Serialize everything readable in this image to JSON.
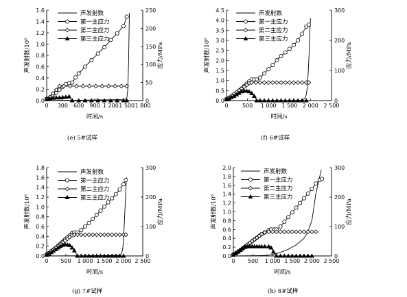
{
  "chart_data": [
    {
      "type": "line",
      "caption": "(e)  5#试样",
      "xlabel": "时间/s",
      "ylabel_left": "声发射数/10⁶",
      "ylabel_right": "应力/MPa",
      "xlim": [
        0,
        1800
      ],
      "ylim_left": [
        0,
        1.6
      ],
      "ylim_right": [
        0,
        250
      ],
      "x_ticks": [
        "0",
        "300",
        "600",
        "900",
        "1 200",
        "1 500",
        "1 800"
      ],
      "x_tick_values": [
        0,
        300,
        600,
        900,
        1200,
        1500,
        1800
      ],
      "y_left_ticks": [
        "0.0",
        "0.2",
        "0.4",
        "0.6",
        "0.8",
        "1.0",
        "1.2",
        "1.4",
        "1.6"
      ],
      "y_left_tick_values": [
        0,
        0.2,
        0.4,
        0.6,
        0.8,
        1.0,
        1.2,
        1.4,
        1.6
      ],
      "y_right_ticks": [
        "0",
        "50",
        "100",
        "150",
        "200",
        "250"
      ],
      "y_right_tick_values": [
        0,
        50,
        100,
        150,
        200,
        250
      ],
      "legend": [
        "声发射数",
        "第一主应力",
        "第二主应力",
        "第三主应力"
      ],
      "series": [
        {
          "name": "声发射数",
          "axis": "left",
          "marker": "none",
          "x": [
            0,
            200,
            400,
            600,
            800,
            1000,
            1200,
            1400,
            1500,
            1520,
            1535,
            1545,
            1550
          ],
          "y": [
            0,
            0.003,
            0.005,
            0.007,
            0.01,
            0.012,
            0.015,
            0.02,
            0.03,
            0.2,
            0.7,
            1.3,
            1.55
          ]
        },
        {
          "name": "第一主应力",
          "axis": "right",
          "marker": "circle",
          "x": [
            0,
            60,
            120,
            180,
            240,
            300,
            360,
            420,
            480,
            540,
            600,
            720,
            840,
            960,
            1080,
            1200,
            1320,
            1440,
            1500
          ],
          "y": [
            5,
            9,
            14,
            22,
            30,
            38,
            46,
            48,
            50,
            64,
            75,
            94,
            112,
            130,
            148,
            168,
            186,
            206,
            232
          ]
        },
        {
          "name": "第二主应力",
          "axis": "right",
          "marker": "diamond",
          "x": [
            0,
            60,
            120,
            180,
            240,
            320,
            440,
            560,
            680,
            800,
            920,
            1040,
            1160,
            1280,
            1400,
            1500
          ],
          "y": [
            5,
            10,
            20,
            30,
            40,
            40,
            40,
            40,
            40,
            40,
            40,
            40,
            40,
            40,
            40,
            40
          ]
        },
        {
          "name": "第三主应力",
          "axis": "right",
          "marker": "triangle",
          "x": [
            0,
            60,
            120,
            180,
            240,
            300,
            360,
            420,
            480,
            600,
            720,
            840,
            960,
            1080,
            1200,
            1320,
            1440,
            1500
          ],
          "y": [
            3,
            5,
            7,
            8,
            8,
            9,
            10,
            11,
            0,
            0,
            0,
            0,
            0,
            0,
            0,
            0,
            0,
            0
          ]
        }
      ]
    },
    {
      "type": "line",
      "caption": "(f)  6#试样",
      "xlabel": "时间/s",
      "ylabel_left": "声发射数/10⁶",
      "ylabel_right": "应力/MPa",
      "xlim": [
        0,
        2500
      ],
      "ylim_left": [
        0,
        4.5
      ],
      "ylim_right": [
        0,
        300
      ],
      "x_ticks": [
        "0",
        "500",
        "1 000",
        "1 500",
        "2 000",
        "2 500"
      ],
      "x_tick_values": [
        0,
        500,
        1000,
        1500,
        2000,
        2500
      ],
      "y_left_ticks": [
        "0.0",
        "0.5",
        "1.0",
        "1.5",
        "2.0",
        "2.5",
        "3.0",
        "3.5",
        "4.0",
        "4.5"
      ],
      "y_left_tick_values": [
        0,
        0.5,
        1.0,
        1.5,
        2.0,
        2.5,
        3.0,
        3.5,
        4.0,
        4.5
      ],
      "y_right_ticks": [
        "0",
        "100",
        "200",
        "300"
      ],
      "y_right_tick_values": [
        0,
        100,
        200,
        300
      ],
      "legend": [
        "声发射数",
        "第一主应力",
        "第二主应力",
        "第三主应力"
      ],
      "series": [
        {
          "name": "声发射数",
          "axis": "left",
          "marker": "none",
          "x": [
            0,
            500,
            1000,
            1500,
            1800,
            1860,
            1900,
            1920,
            1940,
            1960,
            1980,
            2000
          ],
          "y": [
            0,
            0.003,
            0.006,
            0.01,
            0.02,
            0.1,
            0.3,
            0.6,
            1.2,
            2.0,
            3.2,
            4.1
          ]
        },
        {
          "name": "第一主应力",
          "axis": "right",
          "marker": "circle",
          "x": [
            0,
            60,
            120,
            180,
            240,
            300,
            360,
            420,
            480,
            540,
            600,
            660,
            720,
            800,
            900,
            1000,
            1100,
            1200,
            1300,
            1400,
            1500,
            1600,
            1700,
            1800,
            1900,
            1960
          ],
          "y": [
            5,
            9,
            14,
            20,
            26,
            33,
            40,
            48,
            56,
            64,
            70,
            70,
            70,
            76,
            90,
            104,
            118,
            134,
            148,
            160,
            172,
            184,
            200,
            222,
            246,
            252
          ]
        },
        {
          "name": "第二主应力",
          "axis": "right",
          "marker": "diamond",
          "x": [
            0,
            60,
            120,
            180,
            240,
            300,
            360,
            420,
            480,
            540,
            600,
            700,
            800,
            900,
            1000,
            1100,
            1200,
            1300,
            1400,
            1500,
            1600,
            1700,
            1800,
            1900,
            1960
          ],
          "y": [
            5,
            10,
            16,
            22,
            28,
            34,
            40,
            46,
            52,
            58,
            60,
            60,
            60,
            60,
            60,
            60,
            60,
            60,
            60,
            60,
            60,
            60,
            60,
            60,
            60
          ]
        },
        {
          "name": "第三主应力",
          "axis": "right",
          "marker": "triangle",
          "x": [
            0,
            60,
            120,
            180,
            240,
            300,
            360,
            420,
            480,
            540,
            600,
            660,
            720,
            800,
            900,
            1000,
            1100,
            1200,
            1300,
            1400,
            1500,
            1600,
            1700,
            1800,
            1900
          ],
          "y": [
            3,
            7,
            11,
            15,
            20,
            25,
            30,
            32,
            32,
            30,
            24,
            15,
            0,
            0,
            0,
            0,
            0,
            0,
            0,
            0,
            0,
            0,
            0,
            0,
            0
          ]
        }
      ]
    },
    {
      "type": "line",
      "caption": "(g)  7#试样",
      "xlabel": "时间/s",
      "ylabel_left": "声发射数/10⁶",
      "ylabel_right": "应力/MPa",
      "xlim": [
        0,
        2500
      ],
      "ylim_left": [
        0,
        1.8
      ],
      "ylim_right": [
        0,
        300
      ],
      "x_ticks": [
        "0",
        "500",
        "1 000",
        "1 500",
        "2 000",
        "2 500"
      ],
      "x_tick_values": [
        0,
        500,
        1000,
        1500,
        2000,
        2500
      ],
      "y_left_ticks": [
        "0.0",
        "0.2",
        "0.4",
        "0.6",
        "0.8",
        "1.0",
        "1.2",
        "1.4",
        "1.6",
        "1.8"
      ],
      "y_left_tick_values": [
        0,
        0.2,
        0.4,
        0.6,
        0.8,
        1.0,
        1.2,
        1.4,
        1.6,
        1.8
      ],
      "y_right_ticks": [
        "0",
        "100",
        "200",
        "300"
      ],
      "y_right_tick_values": [
        0,
        100,
        200,
        300
      ],
      "legend": [
        "声发射数",
        "第一主应力",
        "第二主应力",
        "第三主应力"
      ],
      "series": [
        {
          "name": "声发射数",
          "axis": "left",
          "marker": "none",
          "x": [
            0,
            500,
            1000,
            1500,
            1900,
            1950,
            1980,
            2000,
            2020,
            2040,
            2060,
            2080
          ],
          "y": [
            0,
            0.003,
            0.005,
            0.008,
            0.015,
            0.05,
            0.15,
            0.35,
            0.65,
            1.0,
            1.35,
            1.6
          ]
        },
        {
          "name": "第一主应力",
          "axis": "right",
          "marker": "circle",
          "x": [
            0,
            60,
            120,
            180,
            240,
            300,
            360,
            420,
            480,
            540,
            600,
            660,
            720,
            800,
            900,
            1000,
            1100,
            1200,
            1300,
            1400,
            1500,
            1600,
            1700,
            1800,
            1900,
            2000,
            2060
          ],
          "y": [
            5,
            10,
            16,
            22,
            28,
            35,
            42,
            49,
            56,
            63,
            70,
            77,
            80,
            80,
            88,
            100,
            112,
            126,
            140,
            154,
            168,
            182,
            196,
            210,
            226,
            244,
            258
          ]
        },
        {
          "name": "第二主应力",
          "axis": "right",
          "marker": "diamond",
          "x": [
            0,
            60,
            120,
            180,
            240,
            300,
            360,
            420,
            480,
            540,
            600,
            660,
            720,
            800,
            900,
            1000,
            1100,
            1200,
            1300,
            1400,
            1500,
            1600,
            1700,
            1800,
            1900,
            2000,
            2060
          ],
          "y": [
            5,
            10,
            16,
            22,
            28,
            34,
            40,
            46,
            52,
            58,
            64,
            70,
            72,
            72,
            72,
            72,
            72,
            72,
            72,
            72,
            72,
            72,
            72,
            72,
            72,
            72,
            72
          ]
        },
        {
          "name": "第三主应力",
          "axis": "right",
          "marker": "triangle",
          "x": [
            0,
            60,
            120,
            180,
            240,
            300,
            360,
            420,
            480,
            540,
            600,
            660,
            720,
            800,
            900,
            1000,
            1100,
            1200,
            1300,
            1400,
            1500,
            1600,
            1700,
            1800,
            1900,
            2000
          ],
          "y": [
            3,
            7,
            12,
            17,
            22,
            28,
            33,
            37,
            38,
            38,
            36,
            28,
            18,
            0,
            0,
            0,
            0,
            0,
            0,
            0,
            0,
            0,
            0,
            0,
            0,
            0
          ]
        }
      ]
    },
    {
      "type": "line",
      "caption": "(h)  8#试样",
      "xlabel": "时间/s",
      "ylabel_left": "声发射数/10⁶",
      "ylabel_right": "应力/MPa",
      "xlim": [
        0,
        2500
      ],
      "ylim_left": [
        0,
        2.0
      ],
      "ylim_right": [
        0,
        300
      ],
      "x_ticks": [
        "0",
        "500",
        "1 000",
        "1 500",
        "2 000",
        "2 500"
      ],
      "x_tick_values": [
        0,
        500,
        1000,
        1500,
        2000,
        2500
      ],
      "y_left_ticks": [
        "0.0",
        "0.2",
        "0.4",
        "0.6",
        "0.8",
        "1.0",
        "1.2",
        "1.4",
        "1.6",
        "1.8",
        "2.0"
      ],
      "y_left_tick_values": [
        0,
        0.2,
        0.4,
        0.6,
        0.8,
        1.0,
        1.2,
        1.4,
        1.6,
        1.8,
        2.0
      ],
      "y_right_ticks": [
        "0",
        "100",
        "200",
        "300"
      ],
      "y_right_tick_values": [
        0,
        100,
        200,
        300
      ],
      "legend": [
        "声发射数",
        "第一主应力",
        "第二主应力",
        "第三主应力"
      ],
      "series": [
        {
          "name": "声发射数",
          "axis": "left",
          "marker": "none",
          "x": [
            0,
            400,
            800,
            1000,
            1200,
            1400,
            1600,
            1800,
            1900,
            2000,
            2050,
            2100,
            2150,
            2200,
            2240
          ],
          "y": [
            0,
            0.005,
            0.01,
            0.03,
            0.08,
            0.15,
            0.25,
            0.4,
            0.55,
            0.8,
            1.1,
            1.4,
            1.6,
            1.8,
            1.95
          ]
        },
        {
          "name": "第一主应力",
          "axis": "right",
          "marker": "circle",
          "x": [
            0,
            60,
            120,
            180,
            240,
            300,
            360,
            420,
            480,
            540,
            600,
            660,
            720,
            800,
            900,
            960,
            1040,
            1100,
            1200,
            1300,
            1400,
            1500,
            1600,
            1700,
            1800,
            1900,
            2000,
            2100,
            2200,
            2260
          ],
          "y": [
            5,
            9,
            14,
            20,
            26,
            32,
            38,
            44,
            50,
            56,
            62,
            68,
            74,
            80,
            88,
            90,
            90,
            90,
            100,
            116,
            132,
            148,
            164,
            180,
            196,
            212,
            228,
            246,
            258,
            262
          ]
        },
        {
          "name": "第二主应力",
          "axis": "right",
          "marker": "diamond",
          "x": [
            0,
            60,
            120,
            180,
            240,
            300,
            360,
            420,
            480,
            540,
            600,
            660,
            720,
            800,
            900,
            1000,
            1100,
            1200,
            1300,
            1400,
            1500,
            1600,
            1700,
            1800,
            1900,
            2000,
            2100
          ],
          "y": [
            5,
            10,
            15,
            20,
            26,
            32,
            38,
            44,
            50,
            56,
            62,
            68,
            74,
            80,
            82,
            82,
            82,
            82,
            82,
            82,
            82,
            82,
            82,
            82,
            82,
            82,
            82
          ]
        },
        {
          "name": "第三主应力",
          "axis": "right",
          "marker": "triangle",
          "x": [
            0,
            60,
            120,
            180,
            240,
            300,
            360,
            420,
            480,
            540,
            600,
            660,
            720,
            800,
            900,
            960,
            1020,
            1100,
            1200,
            1300,
            1400,
            1500,
            1600,
            1700,
            1800,
            1900,
            2000
          ],
          "y": [
            3,
            8,
            14,
            20,
            26,
            30,
            32,
            32,
            32,
            32,
            32,
            32,
            32,
            32,
            32,
            28,
            14,
            0,
            0,
            0,
            0,
            0,
            0,
            0,
            0,
            0,
            0
          ]
        }
      ]
    }
  ]
}
